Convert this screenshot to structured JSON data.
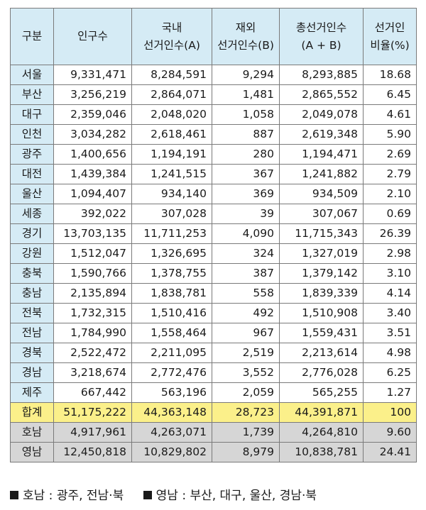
{
  "headers": [
    [
      "구분"
    ],
    [
      "인구수"
    ],
    [
      "국내",
      "선거인수(A)"
    ],
    [
      "재외",
      "선거인수(B)"
    ],
    [
      "총선거인수",
      "(A + B)"
    ],
    [
      "선거인",
      "비율(%)"
    ]
  ],
  "rows": [
    [
      "서울",
      "9,331,471",
      "8,284,591",
      "9,294",
      "8,293,885",
      "18.68"
    ],
    [
      "부산",
      "3,256,219",
      "2,864,071",
      "1,481",
      "2,865,552",
      "6.45"
    ],
    [
      "대구",
      "2,359,046",
      "2,048,020",
      "1,058",
      "2,049,078",
      "4.61"
    ],
    [
      "인천",
      "3,034,282",
      "2,618,461",
      "887",
      "2,619,348",
      "5.90"
    ],
    [
      "광주",
      "1,400,656",
      "1,194,191",
      "280",
      "1,194,471",
      "2.69"
    ],
    [
      "대전",
      "1,439,384",
      "1,241,515",
      "367",
      "1,241,882",
      "2.79"
    ],
    [
      "울산",
      "1,094,407",
      "934,140",
      "369",
      "934,509",
      "2.10"
    ],
    [
      "세종",
      "392,022",
      "307,028",
      "39",
      "307,067",
      "0.69"
    ],
    [
      "경기",
      "13,703,135",
      "11,711,253",
      "4,090",
      "11,715,343",
      "26.39"
    ],
    [
      "강원",
      "1,512,047",
      "1,326,695",
      "324",
      "1,327,019",
      "2.98"
    ],
    [
      "충북",
      "1,590,766",
      "1,378,755",
      "387",
      "1,379,142",
      "3.10"
    ],
    [
      "충남",
      "2,135,894",
      "1,838,781",
      "558",
      "1,839,339",
      "4.14"
    ],
    [
      "전북",
      "1,732,315",
      "1,510,416",
      "492",
      "1,510,908",
      "3.40"
    ],
    [
      "전남",
      "1,784,990",
      "1,558,464",
      "967",
      "1,559,431",
      "3.51"
    ],
    [
      "경북",
      "2,522,472",
      "2,211,095",
      "2,519",
      "2,213,614",
      "4.98"
    ],
    [
      "경남",
      "3,218,674",
      "2,772,476",
      "3,552",
      "2,776,028",
      "6.25"
    ],
    [
      "제주",
      "667,442",
      "563,196",
      "2,059",
      "565,255",
      "1.27"
    ]
  ],
  "total": [
    "합계",
    "51,175,222",
    "44,363,148",
    "28,723",
    "44,391,871",
    "100"
  ],
  "regions": [
    [
      "호남",
      "4,917,961",
      "4,263,071",
      "1,739",
      "4,264,810",
      "9.60"
    ],
    [
      "영남",
      "12,450,818",
      "10,829,802",
      "8,979",
      "10,838,781",
      "24.41"
    ]
  ],
  "legend": [
    "호남 : 광주, 전남·북",
    "영남 : 부산, 대구, 울산, 경남·북"
  ],
  "colors": {
    "header_bg": "#d5ebf5",
    "total_bg": "#fbf08a",
    "region_bg": "#d6d6d6",
    "border": "#7a7a7a"
  }
}
